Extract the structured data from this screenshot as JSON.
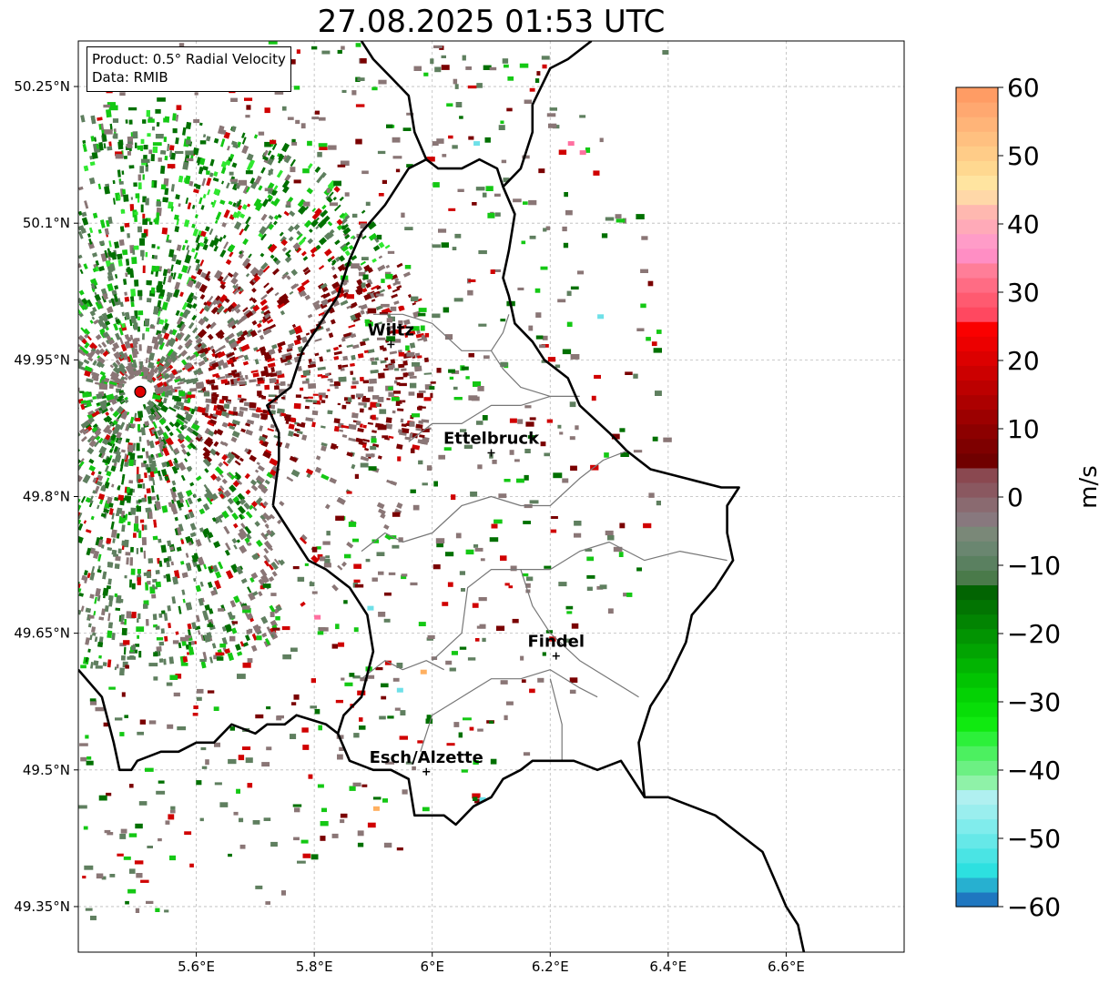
{
  "title": "27.08.2025 01:53 UTC",
  "info_box": {
    "product": "Product: 0.5° Radial Velocity",
    "data": "Data: RMIB"
  },
  "axes": {
    "lon_ticks": [
      "5.6°E",
      "5.8°E",
      "6°E",
      "6.2°E",
      "6.4°E",
      "6.6°E"
    ],
    "lat_ticks": [
      "50.25°N",
      "50.1°N",
      "49.95°N",
      "49.8°N",
      "49.65°N",
      "49.5°N",
      "49.35°N"
    ],
    "lon_values": [
      5.6,
      5.8,
      6.0,
      6.2,
      6.4,
      6.6
    ],
    "lat_values": [
      50.25,
      50.1,
      49.95,
      49.8,
      49.65,
      49.5,
      49.35
    ],
    "lon_range": [
      5.4,
      6.8
    ],
    "lat_range": [
      49.3,
      50.3
    ]
  },
  "cities": [
    {
      "name": "Wiltz",
      "lon": 5.93,
      "lat": 49.967
    },
    {
      "name": "Ettelbruck",
      "lon": 6.1,
      "lat": 49.848
    },
    {
      "name": "Findel",
      "lon": 6.21,
      "lat": 49.625
    },
    {
      "name": "Esch/Alzette",
      "lon": 5.99,
      "lat": 49.498
    }
  ],
  "radar_site": {
    "lon": 5.505,
    "lat": 49.915,
    "color": "#e00000"
  },
  "colorbar": {
    "unit": "m/s",
    "min": -60,
    "max": 60,
    "tick_labels": [
      "60",
      "50",
      "40",
      "30",
      "20",
      "10",
      "0",
      "−10",
      "−20",
      "−30",
      "−40",
      "−50",
      "−60"
    ],
    "tick_values": [
      60,
      50,
      40,
      30,
      20,
      10,
      0,
      -10,
      -20,
      -30,
      -40,
      -50,
      -60
    ],
    "colors_low_to_high": [
      "#1f77c0",
      "#27b0d0",
      "#2de0e0",
      "#4ae4e4",
      "#66e8e8",
      "#80ecec",
      "#9aeeee",
      "#b0f0f0",
      "#8ff2a8",
      "#6cf083",
      "#4cf060",
      "#2cf03a",
      "#10ea10",
      "#08de08",
      "#04d204",
      "#02c402",
      "#02b402",
      "#02a402",
      "#029402",
      "#028402",
      "#027402",
      "#026402",
      "#4a7a4a",
      "#5a8060",
      "#6a8670",
      "#7a8878",
      "#88787e",
      "#8a6a70",
      "#8a5860",
      "#8a4850",
      "#700000",
      "#7e0000",
      "#8c0000",
      "#9c0000",
      "#ac0000",
      "#bc0000",
      "#cc0000",
      "#dc0000",
      "#ec0000",
      "#fa0000",
      "#ff4860",
      "#ff5a70",
      "#ff6c84",
      "#ff7e98",
      "#ff8ec4",
      "#ff9cc8",
      "#ffaab8",
      "#ffb8b0",
      "#ffd8a8",
      "#ffe4a0",
      "#ffd890",
      "#ffcc88",
      "#ffc080",
      "#ffb478",
      "#ffa870",
      "#ff9c64"
    ]
  },
  "echo_colors": {
    "outbound_dark": "#7a0000",
    "outbound_red": "#d00000",
    "near_zero_brown": "#8a7676",
    "near_zero_green": "#5f7f5f",
    "inbound_dark_green": "#007000",
    "inbound_green": "#14c814",
    "inbound_bright": "#30e830",
    "cyan": "#6ee0e8",
    "pink": "#ff70a0",
    "orange": "#ffb060"
  },
  "borders": {
    "country": [
      [
        [
          5.4,
          49.61
        ],
        [
          5.44,
          49.58
        ],
        [
          5.46,
          49.53
        ],
        [
          5.47,
          49.5
        ],
        [
          5.49,
          49.5
        ],
        [
          5.5,
          49.51
        ],
        [
          5.54,
          49.52
        ],
        [
          5.57,
          49.52
        ],
        [
          5.6,
          49.53
        ],
        [
          5.63,
          49.53
        ],
        [
          5.66,
          49.55
        ],
        [
          5.7,
          49.54
        ],
        [
          5.72,
          49.55
        ],
        [
          5.75,
          49.55
        ],
        [
          5.77,
          49.56
        ],
        [
          5.82,
          49.55
        ],
        [
          5.84,
          49.54
        ],
        [
          5.86,
          49.51
        ],
        [
          5.9,
          49.5
        ],
        [
          5.93,
          49.5
        ],
        [
          5.96,
          49.49
        ],
        [
          5.97,
          49.45
        ],
        [
          6.0,
          49.45
        ],
        [
          6.02,
          49.45
        ],
        [
          6.04,
          49.44
        ],
        [
          6.07,
          49.46
        ],
        [
          6.1,
          49.47
        ],
        [
          6.12,
          49.49
        ],
        [
          6.15,
          49.5
        ],
        [
          6.17,
          49.51
        ],
        [
          6.21,
          49.51
        ],
        [
          6.24,
          49.51
        ],
        [
          6.28,
          49.5
        ],
        [
          6.32,
          49.51
        ],
        [
          6.36,
          49.47
        ],
        [
          6.4,
          49.47
        ],
        [
          6.44,
          49.46
        ],
        [
          6.48,
          49.45
        ],
        [
          6.52,
          49.43
        ],
        [
          6.56,
          49.41
        ],
        [
          6.58,
          49.38
        ],
        [
          6.6,
          49.35
        ],
        [
          6.62,
          49.33
        ],
        [
          6.63,
          49.3
        ]
      ],
      [
        [
          5.73,
          49.79
        ],
        [
          5.76,
          49.76
        ],
        [
          5.79,
          49.73
        ],
        [
          5.82,
          49.72
        ],
        [
          5.86,
          49.7
        ],
        [
          5.89,
          49.67
        ],
        [
          5.9,
          49.63
        ],
        [
          5.88,
          49.58
        ],
        [
          5.85,
          49.56
        ],
        [
          5.84,
          49.54
        ]
      ],
      [
        [
          5.73,
          49.79
        ],
        [
          5.74,
          49.84
        ],
        [
          5.74,
          49.87
        ],
        [
          5.72,
          49.9
        ],
        [
          5.76,
          49.92
        ],
        [
          5.78,
          49.96
        ],
        [
          5.81,
          49.99
        ],
        [
          5.84,
          50.02
        ],
        [
          5.86,
          50.06
        ],
        [
          5.88,
          50.09
        ],
        [
          5.92,
          50.12
        ],
        [
          5.96,
          50.16
        ],
        [
          5.99,
          50.17
        ],
        [
          6.01,
          50.16
        ],
        [
          6.05,
          50.16
        ],
        [
          6.08,
          50.17
        ],
        [
          6.11,
          50.16
        ],
        [
          6.12,
          50.14
        ],
        [
          6.14,
          50.11
        ],
        [
          6.13,
          50.07
        ],
        [
          6.12,
          50.04
        ],
        [
          6.13,
          50.02
        ],
        [
          6.14,
          49.99
        ],
        [
          6.17,
          49.97
        ],
        [
          6.19,
          49.95
        ],
        [
          6.23,
          49.93
        ],
        [
          6.25,
          49.9
        ],
        [
          6.3,
          49.87
        ],
        [
          6.33,
          49.85
        ],
        [
          6.37,
          49.83
        ],
        [
          6.43,
          49.82
        ],
        [
          6.49,
          49.81
        ],
        [
          6.52,
          49.81
        ],
        [
          6.5,
          49.79
        ],
        [
          6.5,
          49.76
        ],
        [
          6.51,
          49.73
        ],
        [
          6.48,
          49.7
        ],
        [
          6.44,
          49.67
        ],
        [
          6.43,
          49.64
        ],
        [
          6.4,
          49.6
        ],
        [
          6.37,
          49.57
        ],
        [
          6.35,
          49.53
        ],
        [
          6.36,
          49.47
        ]
      ],
      [
        [
          6.12,
          50.14
        ],
        [
          6.15,
          50.16
        ],
        [
          6.17,
          50.2
        ],
        [
          6.17,
          50.23
        ],
        [
          6.2,
          50.27
        ],
        [
          6.23,
          50.28
        ],
        [
          6.27,
          50.3
        ]
      ],
      [
        [
          5.99,
          50.17
        ],
        [
          5.97,
          50.2
        ],
        [
          5.96,
          50.24
        ],
        [
          5.93,
          50.26
        ],
        [
          5.9,
          50.28
        ],
        [
          5.88,
          50.3
        ]
      ]
    ],
    "cantons": [
      [
        [
          5.98,
          49.52
        ],
        [
          6.0,
          49.56
        ],
        [
          6.05,
          49.58
        ],
        [
          6.1,
          49.6
        ],
        [
          6.15,
          49.6
        ],
        [
          6.2,
          49.61
        ],
        [
          6.25,
          49.59
        ],
        [
          6.28,
          49.58
        ]
      ],
      [
        [
          5.88,
          49.6
        ],
        [
          5.92,
          49.62
        ],
        [
          5.95,
          49.61
        ],
        [
          5.99,
          49.62
        ],
        [
          6.02,
          49.61
        ]
      ],
      [
        [
          6.0,
          49.62
        ],
        [
          6.05,
          49.65
        ],
        [
          6.06,
          49.7
        ],
        [
          6.1,
          49.72
        ],
        [
          6.15,
          49.72
        ],
        [
          6.2,
          49.72
        ],
        [
          6.25,
          49.74
        ],
        [
          6.3,
          49.75
        ],
        [
          6.36,
          49.73
        ],
        [
          6.42,
          49.74
        ],
        [
          6.5,
          49.73
        ]
      ],
      [
        [
          5.88,
          49.74
        ],
        [
          5.92,
          49.76
        ],
        [
          5.95,
          49.75
        ],
        [
          6.0,
          49.76
        ],
        [
          6.05,
          49.79
        ],
        [
          6.1,
          49.8
        ],
        [
          6.15,
          49.79
        ],
        [
          6.2,
          49.79
        ],
        [
          6.25,
          49.82
        ],
        [
          6.29,
          49.84
        ],
        [
          6.33,
          49.85
        ]
      ],
      [
        [
          5.96,
          49.86
        ],
        [
          6.0,
          49.88
        ],
        [
          6.05,
          49.88
        ],
        [
          6.1,
          49.9
        ],
        [
          6.15,
          49.9
        ],
        [
          6.2,
          49.91
        ],
        [
          6.25,
          49.91
        ]
      ],
      [
        [
          5.9,
          50.0
        ],
        [
          5.95,
          50.0
        ],
        [
          6.0,
          49.99
        ],
        [
          6.05,
          49.96
        ],
        [
          6.1,
          49.96
        ],
        [
          6.12,
          49.94
        ],
        [
          6.15,
          49.92
        ],
        [
          6.2,
          49.91
        ]
      ],
      [
        [
          6.1,
          49.96
        ],
        [
          6.12,
          49.98
        ],
        [
          6.13,
          50.0
        ]
      ],
      [
        [
          6.2,
          49.6
        ],
        [
          6.22,
          49.55
        ],
        [
          6.22,
          49.51
        ]
      ],
      [
        [
          6.15,
          49.72
        ],
        [
          6.17,
          49.68
        ],
        [
          6.2,
          49.65
        ],
        [
          6.25,
          49.62
        ],
        [
          6.3,
          49.6
        ],
        [
          6.35,
          49.58
        ]
      ]
    ]
  }
}
